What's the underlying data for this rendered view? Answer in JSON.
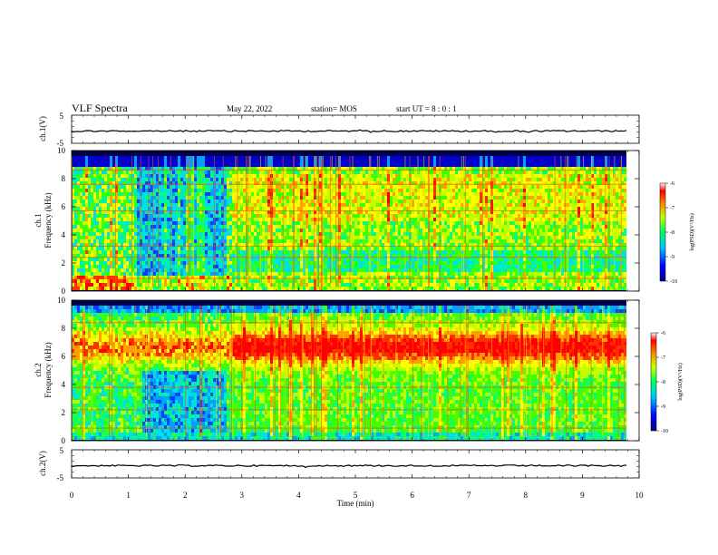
{
  "header": {
    "title": "VLF Spectra",
    "date": "May 22, 2022",
    "station": "station= MOS",
    "start": "start  UT =   8 : 0  : 1"
  },
  "chart_data": [
    {
      "type": "line",
      "name": "ch1-waveform",
      "ylabel": "ch.1(V)",
      "ylim": [
        -5,
        5
      ],
      "yticks": [
        "5",
        "-5"
      ],
      "xlim": [
        0,
        10
      ]
    },
    {
      "type": "heatmap",
      "name": "ch1-spectrogram",
      "ylabel": "ch.1\nFrequency (kHz)",
      "ylabel_lines": [
        "ch.1",
        "Frequency (kHz)"
      ],
      "ylim": [
        0,
        10
      ],
      "yticks": [
        "0",
        "2",
        "4",
        "6",
        "8",
        "10"
      ],
      "xlim": [
        0,
        10
      ],
      "colorbar": {
        "label": "log(PSD)(V²/Hz)",
        "range": [
          -10,
          -6
        ],
        "ticks": [
          "-6",
          "-7",
          "-8",
          "-9",
          "-10"
        ]
      }
    },
    {
      "type": "heatmap",
      "name": "ch2-spectrogram",
      "ylabel": "ch.2\nFrequency (kHz)",
      "ylabel_lines": [
        "ch.2",
        "Frequency (kHz)"
      ],
      "ylim": [
        0,
        10
      ],
      "yticks": [
        "0",
        "2",
        "4",
        "6",
        "8",
        "10"
      ],
      "xlim": [
        0,
        10
      ],
      "colorbar": {
        "label": "log(PSD)(V²/Hz)",
        "range": [
          -10,
          -6
        ],
        "ticks": [
          "-6",
          "-7",
          "-8",
          "-9",
          "-10"
        ]
      }
    },
    {
      "type": "line",
      "name": "ch2-waveform",
      "ylabel": "ch.2(V)",
      "ylim": [
        -5,
        5
      ],
      "yticks": [
        "5",
        "-5"
      ],
      "xlim": [
        0,
        10
      ],
      "xlabel": "Time (min)",
      "xticks": [
        "0",
        "1",
        "2",
        "3",
        "4",
        "5",
        "6",
        "7",
        "8",
        "9",
        "10"
      ]
    }
  ]
}
